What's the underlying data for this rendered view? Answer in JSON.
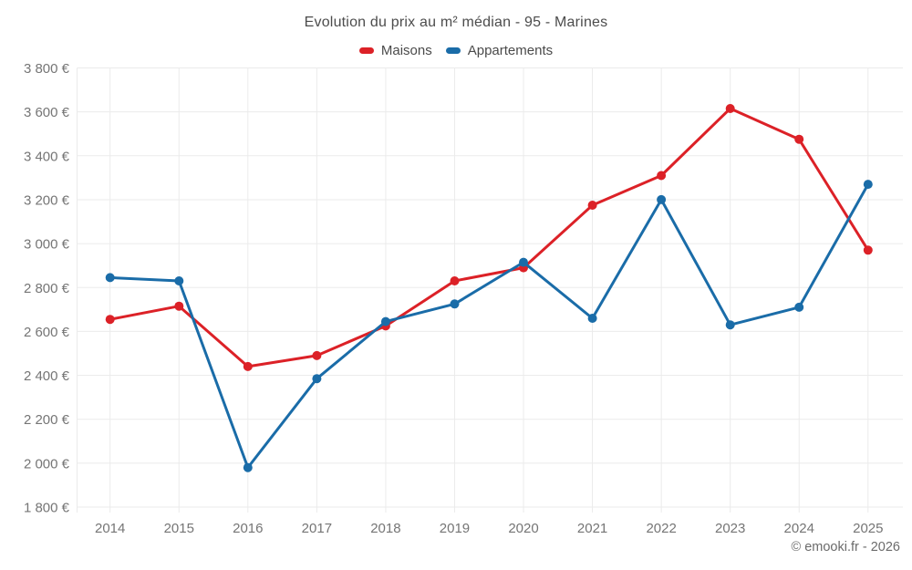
{
  "header": {
    "title": "Evolution du prix au m² médian - 95 - Marines"
  },
  "legend": {
    "items": [
      {
        "label": "Maisons",
        "color": "#dc2127"
      },
      {
        "label": "Appartements",
        "color": "#1a6ca8"
      }
    ]
  },
  "footer": {
    "credit": "© emooki.fr - 2026"
  },
  "chart_data": {
    "type": "line",
    "title": "Evolution du prix au m² médian - 95 - Marines",
    "x": [
      2014,
      2015,
      2016,
      2017,
      2018,
      2019,
      2020,
      2021,
      2022,
      2023,
      2024,
      2025
    ],
    "series": [
      {
        "name": "Maisons",
        "color": "#dc2127",
        "values": [
          2655,
          2715,
          2440,
          2490,
          2625,
          2830,
          2890,
          3175,
          3310,
          3615,
          3475,
          2970
        ]
      },
      {
        "name": "Appartements",
        "color": "#1a6ca8",
        "values": [
          2845,
          2830,
          1980,
          2385,
          2645,
          2725,
          2915,
          2660,
          3200,
          2630,
          2710,
          3270
        ]
      }
    ],
    "ylim": [
      1800,
      3800
    ],
    "ytick_step": 200,
    "ytick_suffix": " €",
    "grid": true,
    "legend_position": "top",
    "colors": {
      "gridline": "#ebebeb",
      "axis_label": "#757575",
      "title": "#4c4c4c"
    }
  }
}
